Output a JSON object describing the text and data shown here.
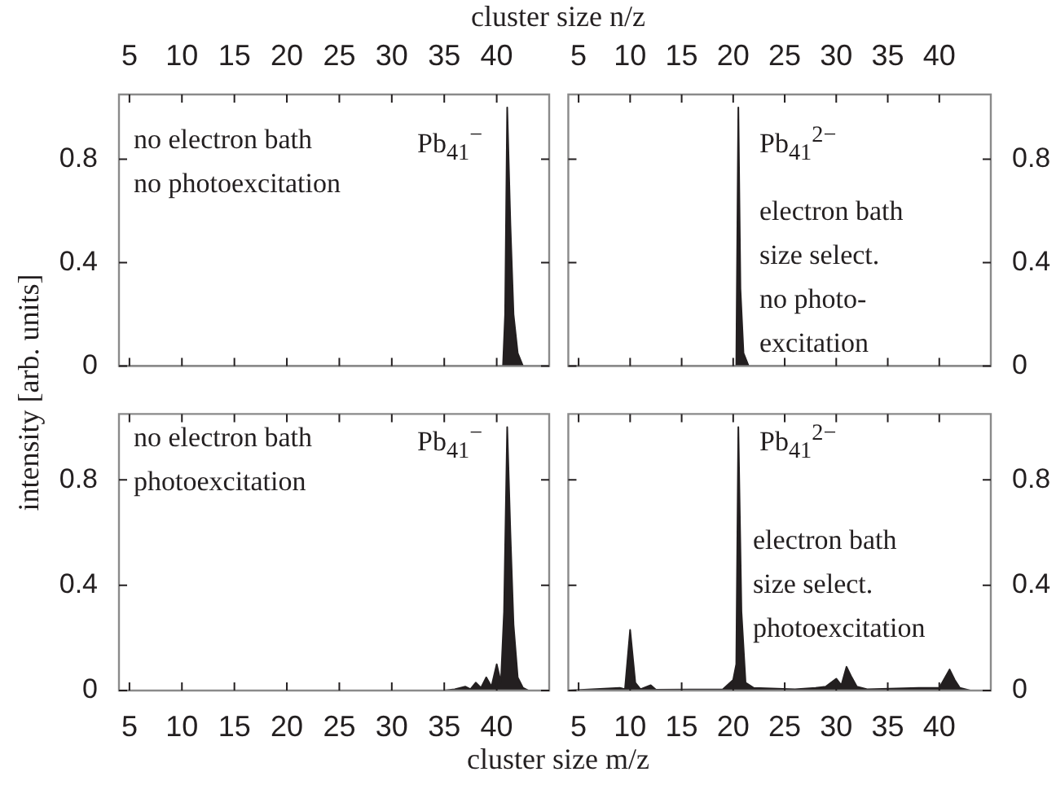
{
  "chart_data": [
    {
      "type": "area",
      "xlabel": "cluster size n/z",
      "ylabel": "intensity [arb. units]",
      "annotations": [
        "no electron bath\nno photoexcitation",
        "Pb$_{41}$$^{−}$"
      ],
      "xlim": [
        4,
        45
      ],
      "xticks": [
        5,
        10,
        15,
        20,
        25,
        30,
        35,
        40
      ],
      "ylim": [
        0,
        1.05
      ],
      "yticks": [
        0,
        0.4,
        0.8
      ],
      "grid": false,
      "series": [
        {
          "color": "#231f20",
          "x": [
            4,
            40.6,
            40.8,
            41,
            41.3,
            41.6,
            42,
            42.5,
            45
          ],
          "values": [
            0,
            0,
            0.2,
            1.0,
            0.55,
            0.2,
            0.05,
            0,
            0
          ]
        }
      ]
    },
    {
      "type": "area",
      "annotations": [
        "electron bath\nsize select.\nno photo-\nexcitation",
        "Pb$_{41}$$^{2−}$"
      ],
      "xlim": [
        4,
        45
      ],
      "xticks": [
        5,
        10,
        15,
        20,
        25,
        30,
        35,
        40
      ],
      "ylim": [
        0,
        1.05
      ],
      "yticks": [
        0,
        0.4,
        0.8
      ],
      "grid": false,
      "series": [
        {
          "color": "#231f20",
          "x": [
            4,
            20.3,
            20.5,
            20.7,
            21,
            21.5,
            45
          ],
          "values": [
            0,
            0,
            1.0,
            0.3,
            0.05,
            0,
            0
          ]
        }
      ]
    },
    {
      "type": "area",
      "xlabel": "cluster size m/z",
      "annotations": [
        "no electron bath\nphotoexcitation",
        "Pb$_{41}$$^{−}$"
      ],
      "xlim": [
        4,
        45
      ],
      "xticks": [
        5,
        10,
        15,
        20,
        25,
        30,
        35,
        40
      ],
      "ylim": [
        0,
        1.05
      ],
      "yticks": [
        0,
        0.4,
        0.8
      ],
      "grid": false,
      "series": [
        {
          "color": "#231f20",
          "x": [
            4,
            35,
            36,
            37,
            37.5,
            38,
            38.5,
            39,
            39.5,
            40,
            40.4,
            40.7,
            41,
            41.3,
            41.6,
            42,
            42.5,
            43,
            45
          ],
          "values": [
            0,
            0,
            0.005,
            0.015,
            0.005,
            0.03,
            0.01,
            0.05,
            0.015,
            0.1,
            0.03,
            0.3,
            1.0,
            0.6,
            0.25,
            0.05,
            0.01,
            0,
            0
          ]
        }
      ]
    },
    {
      "type": "area",
      "annotations": [
        "electron bath\nsize select.\nphotoexcitation",
        "Pb$_{41}$$^{2−}$"
      ],
      "xlim": [
        4,
        45
      ],
      "xticks": [
        5,
        10,
        15,
        20,
        25,
        30,
        35,
        40
      ],
      "ylim": [
        0,
        1.05
      ],
      "yticks": [
        0,
        0.4,
        0.8
      ],
      "grid": false,
      "series": [
        {
          "color": "#231f20",
          "x": [
            4,
            9,
            9.5,
            10,
            10.5,
            11,
            12,
            12.5,
            19,
            20,
            20.3,
            20.5,
            20.8,
            21.2,
            22,
            26,
            28,
            29,
            30,
            30.5,
            31,
            31.5,
            32,
            33,
            38,
            40,
            41,
            41.5,
            42,
            43,
            45
          ],
          "values": [
            0,
            0.01,
            0.005,
            0.23,
            0.03,
            0.005,
            0.02,
            0.003,
            0.005,
            0.04,
            0.1,
            1.0,
            0.3,
            0.03,
            0.01,
            0.005,
            0.01,
            0.015,
            0.045,
            0.02,
            0.09,
            0.05,
            0.015,
            0.005,
            0.01,
            0.01,
            0.08,
            0.04,
            0.01,
            0,
            0
          ]
        }
      ]
    }
  ]
}
